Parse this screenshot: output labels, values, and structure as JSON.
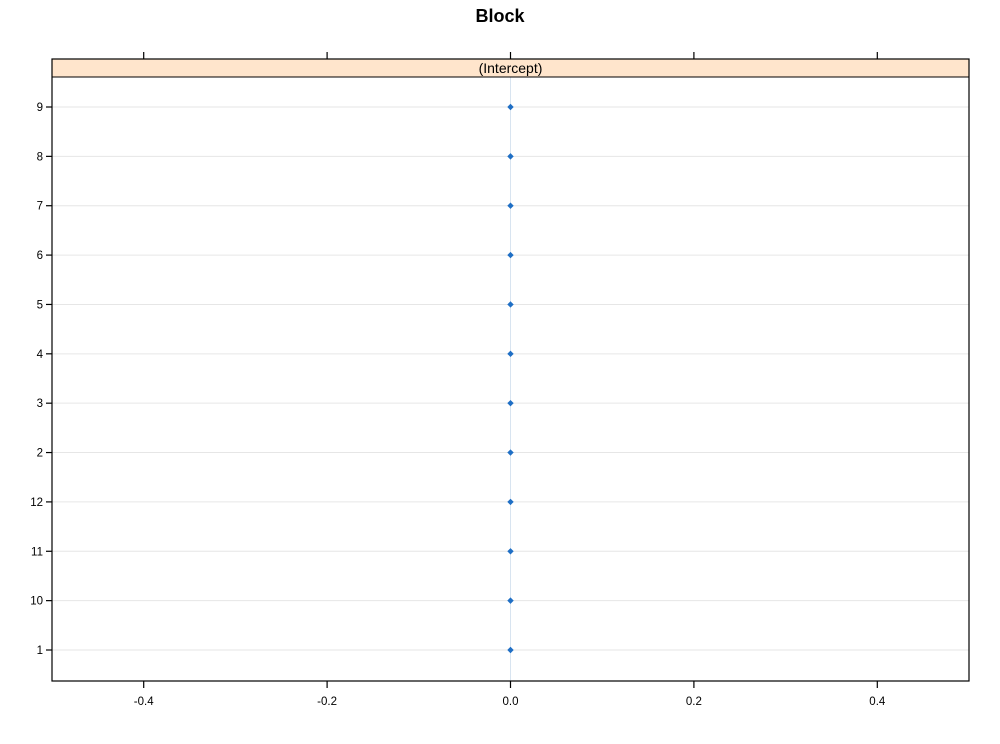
{
  "chart_data": {
    "type": "dotplot",
    "title": "Block",
    "panel_label": "(Intercept)",
    "xlabel": "",
    "ylabel": "",
    "xlim": [
      -0.5,
      0.5
    ],
    "x_ticks": [
      "-0.4",
      "-0.2",
      "0.0",
      "0.2",
      "0.4"
    ],
    "x_tick_values": [
      -0.4,
      -0.2,
      0.0,
      0.2,
      0.4
    ],
    "categories": [
      "1",
      "10",
      "11",
      "12",
      "2",
      "3",
      "4",
      "5",
      "6",
      "7",
      "8",
      "9"
    ],
    "values": [
      0,
      0,
      0,
      0,
      0,
      0,
      0,
      0,
      0,
      0,
      0,
      0
    ],
    "grid": true,
    "reference_line_x": 0,
    "colors": {
      "points": "#1f6fc5",
      "strip": "#ffe5cc",
      "grid": "#e6e6e6",
      "reference": "#d8e4f0"
    }
  }
}
